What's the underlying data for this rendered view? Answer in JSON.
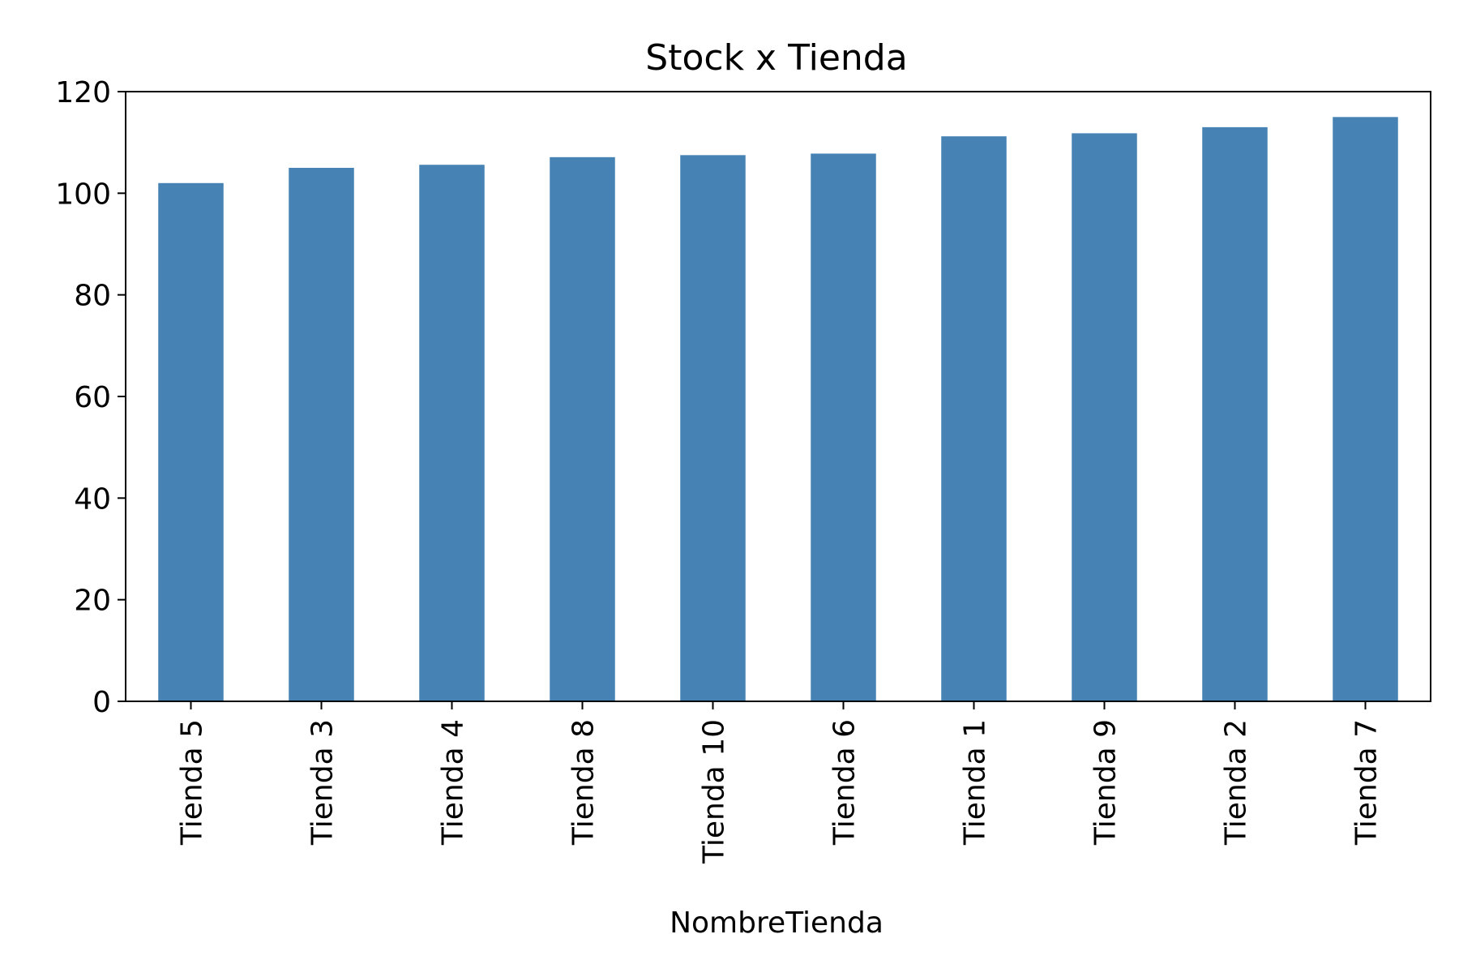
{
  "chart_data": {
    "type": "bar",
    "title": "Stock x Tienda",
    "xlabel": "NombreTienda",
    "ylabel": "",
    "categories": [
      "Tienda 5",
      "Tienda 3",
      "Tienda 4",
      "Tienda 8",
      "Tienda 10",
      "Tienda 6",
      "Tienda 1",
      "Tienda 9",
      "Tienda 2",
      "Tienda 7"
    ],
    "values": [
      102,
      105,
      105.6,
      107.1,
      107.5,
      107.8,
      111.2,
      111.8,
      113,
      115
    ],
    "ylim": [
      0,
      120
    ],
    "yticks": [
      0,
      20,
      40,
      60,
      80,
      100,
      120
    ],
    "ytick_labels": [
      "0",
      "20",
      "40",
      "60",
      "80",
      "100",
      "120"
    ],
    "bar_color": "#4682b4",
    "grid": false,
    "legend": false
  }
}
